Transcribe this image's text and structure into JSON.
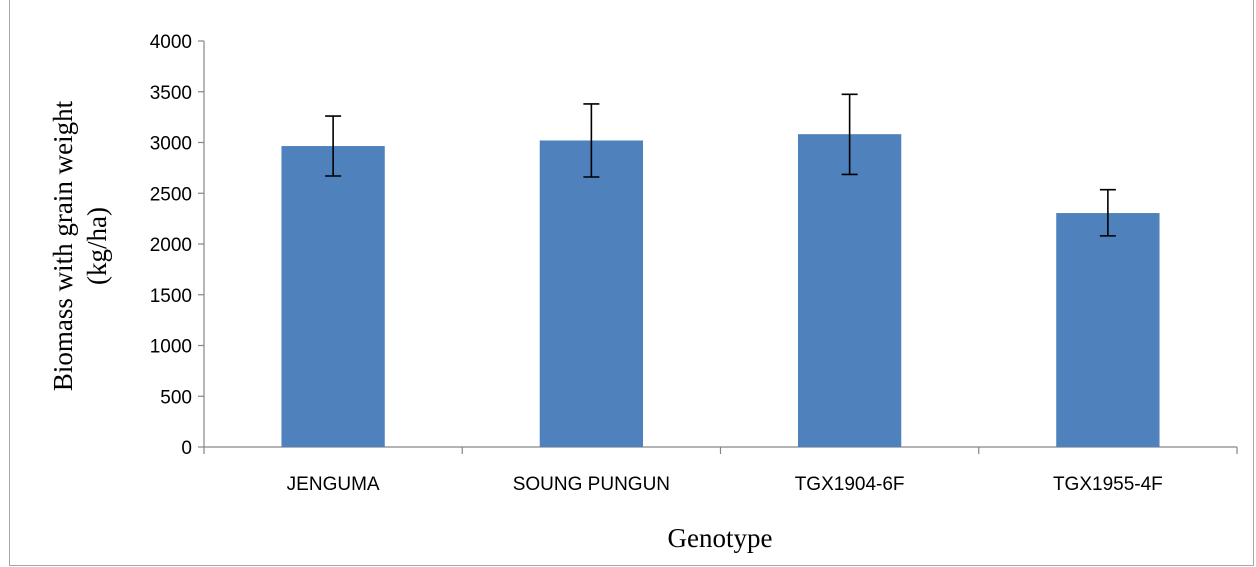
{
  "chart_data": {
    "type": "bar",
    "categories": [
      "JENGUMA",
      "SOUNG PUNGUN",
      "TGX1904-6F",
      "TGX1955-4F"
    ],
    "values": [
      2965,
      3020,
      3082,
      2305
    ],
    "error_low": [
      2670,
      2660,
      2685,
      2080
    ],
    "error_high": [
      3260,
      3380,
      3475,
      2535
    ],
    "xlabel": "Genotype",
    "ylabel_lines": [
      "Biomass with grain weight",
      "(kg/ha)"
    ],
    "ylim": [
      0,
      4000
    ],
    "yticks": [
      0,
      500,
      1000,
      1500,
      2000,
      2500,
      3000,
      3500,
      4000
    ],
    "bar_color": "#4f81bd",
    "grid": false,
    "legend": "none"
  }
}
